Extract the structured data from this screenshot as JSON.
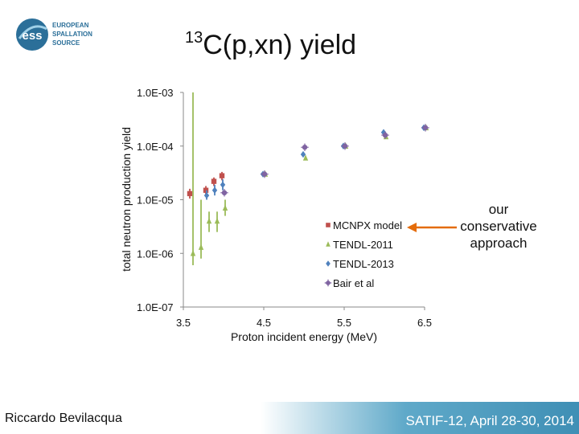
{
  "logo": {
    "line1": "EUROPEAN",
    "line2": "SPALLATION",
    "line3": "SOURCE",
    "mark": "ess"
  },
  "title": {
    "superscript": "13",
    "main": "C(p,xn) yield"
  },
  "author": "Riccardo Bevilacqua",
  "conference": "SATIF-12, April 28-30, 2014",
  "annotation": {
    "line1": "our",
    "line2": "conservative",
    "line3": "approach"
  },
  "colors": {
    "mcnpx": "#c0504d",
    "tendl2011": "#9bbb59",
    "tendl2013": "#4f81bd",
    "bair": "#8064a2",
    "arrow": "#e46c0a"
  },
  "chart_data": {
    "type": "scatter",
    "title": "",
    "xlabel": "Proton incident energy (MeV)",
    "ylabel": "total neutron production yield",
    "xlim": [
      3.5,
      6.5
    ],
    "ylim": [
      1e-07,
      0.001
    ],
    "yscale": "log",
    "xticks": [
      "3.5",
      "4.5",
      "5.5",
      "6.5"
    ],
    "yticks": [
      "1.0E-07",
      "1.0E-06",
      "1.0E-05",
      "1.0E-04",
      "1.0E-03"
    ],
    "legend_position": "lower-right",
    "series": [
      {
        "name": "MCNPX model",
        "marker": "square",
        "color_key": "mcnpx",
        "points": [
          [
            3.6,
            1.3e-05
          ],
          [
            3.8,
            1.5e-05
          ],
          [
            3.9,
            2.2e-05
          ],
          [
            4.0,
            2.8e-05
          ]
        ],
        "errors": [
          [
            3.6,
            1.05e-05,
            1.6e-05
          ],
          [
            3.8,
            1.2e-05,
            1.8e-05
          ],
          [
            3.9,
            1.8e-05,
            2.6e-05
          ],
          [
            4.0,
            2.3e-05,
            3.3e-05
          ]
        ]
      },
      {
        "name": "TENDL-2011",
        "marker": "triangle",
        "color_key": "tendl2011",
        "points": [
          [
            3.6,
            1e-06
          ],
          [
            3.7,
            1.3e-06
          ],
          [
            3.8,
            4e-06
          ],
          [
            3.9,
            4e-06
          ],
          [
            4.0,
            7e-06
          ],
          [
            4.5,
            3e-05
          ],
          [
            5.0,
            6e-05
          ],
          [
            5.5,
            0.0001
          ],
          [
            6.0,
            0.00015
          ],
          [
            6.5,
            0.00022
          ]
        ],
        "errors": [
          [
            3.6,
            6e-07,
            0.001
          ],
          [
            3.7,
            8e-07,
            1e-05
          ],
          [
            3.8,
            2.5e-06,
            6e-06
          ],
          [
            3.9,
            2.5e-06,
            6e-06
          ],
          [
            4.0,
            5e-06,
            1e-05
          ]
        ]
      },
      {
        "name": "TENDL-2013",
        "marker": "diamond",
        "color_key": "tendl2013",
        "points": [
          [
            3.8,
            1.2e-05
          ],
          [
            3.9,
            1.5e-05
          ],
          [
            4.0,
            1.9e-05
          ],
          [
            4.5,
            3e-05
          ],
          [
            5.0,
            7e-05
          ],
          [
            5.5,
            0.0001
          ],
          [
            6.0,
            0.00018
          ],
          [
            6.5,
            0.00022
          ]
        ],
        "errors": [
          [
            3.8,
            1e-05,
            1.5e-05
          ],
          [
            3.9,
            1.2e-05,
            1.9e-05
          ],
          [
            4.0,
            1.5e-05,
            2.4e-05
          ]
        ]
      },
      {
        "name": "Bair et al",
        "marker": "star",
        "color_key": "bair",
        "points": [
          [
            4.0,
            1.35e-05
          ],
          [
            4.5,
            3e-05
          ],
          [
            5.0,
            9.5e-05
          ],
          [
            5.5,
            0.0001
          ],
          [
            6.0,
            0.00016
          ],
          [
            6.5,
            0.00022
          ]
        ],
        "errors": []
      }
    ]
  }
}
